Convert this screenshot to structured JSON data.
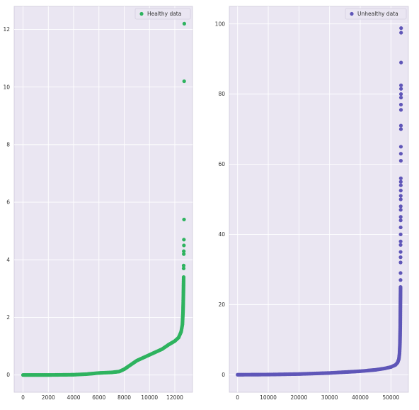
{
  "chart_data": [
    {
      "type": "scatter",
      "title": "",
      "xlabel": "",
      "ylabel": "",
      "legend": {
        "label": "Healthy data",
        "placement": "top-right"
      },
      "color": "#2eb35f",
      "grid": true,
      "xlim": [
        -700,
        13400
      ],
      "ylim": [
        -0.6,
        12.8
      ],
      "xticks": [
        0,
        2000,
        4000,
        6000,
        8000,
        10000,
        12000
      ],
      "yticks": [
        0,
        2,
        4,
        6,
        8,
        10,
        12
      ],
      "curve": [
        [
          0,
          0
        ],
        [
          2000,
          0
        ],
        [
          4000,
          0.01
        ],
        [
          5000,
          0.03
        ],
        [
          6000,
          0.07
        ],
        [
          7000,
          0.09
        ],
        [
          7600,
          0.12
        ],
        [
          8000,
          0.2
        ],
        [
          8500,
          0.35
        ],
        [
          9000,
          0.5
        ],
        [
          9500,
          0.6
        ],
        [
          10000,
          0.7
        ],
        [
          10500,
          0.8
        ],
        [
          11000,
          0.9
        ],
        [
          11500,
          1.05
        ],
        [
          12000,
          1.18
        ],
        [
          12300,
          1.3
        ],
        [
          12500,
          1.5
        ],
        [
          12600,
          1.75
        ],
        [
          12650,
          2.2
        ],
        [
          12680,
          2.8
        ],
        [
          12700,
          3.4
        ]
      ],
      "outliers": [
        [
          12700,
          3.7
        ],
        [
          12700,
          3.8
        ],
        [
          12710,
          4.2
        ],
        [
          12710,
          4.3
        ],
        [
          12720,
          4.5
        ],
        [
          12720,
          4.7
        ],
        [
          12730,
          5.4
        ],
        [
          12740,
          10.2
        ],
        [
          12750,
          12.2
        ]
      ]
    },
    {
      "type": "scatter",
      "title": "",
      "xlabel": "",
      "ylabel": "",
      "legend": {
        "label": "Unhealthy data",
        "placement": "top-right"
      },
      "color": "#5f56b8",
      "grid": true,
      "xlim": [
        -2700,
        55700
      ],
      "ylim": [
        -5,
        105
      ],
      "xticks": [
        0,
        10000,
        20000,
        30000,
        40000,
        50000
      ],
      "yticks": [
        0,
        20,
        40,
        60,
        80,
        100
      ],
      "curve": [
        [
          0,
          0
        ],
        [
          10000,
          0.05
        ],
        [
          20000,
          0.2
        ],
        [
          30000,
          0.5
        ],
        [
          40000,
          1.0
        ],
        [
          45000,
          1.4
        ],
        [
          48000,
          1.8
        ],
        [
          50000,
          2.2
        ],
        [
          51500,
          2.8
        ],
        [
          52200,
          3.5
        ],
        [
          52600,
          4.5
        ],
        [
          52800,
          6
        ],
        [
          52950,
          9
        ],
        [
          53050,
          14
        ],
        [
          53100,
          20
        ],
        [
          53150,
          25
        ]
      ],
      "outliers": [
        [
          53150,
          27
        ],
        [
          53150,
          29
        ],
        [
          53160,
          32
        ],
        [
          53160,
          33.5
        ],
        [
          53170,
          35
        ],
        [
          53170,
          37
        ],
        [
          53180,
          38
        ],
        [
          53180,
          40
        ],
        [
          53190,
          42
        ],
        [
          53190,
          44
        ],
        [
          53200,
          45
        ],
        [
          53200,
          47
        ],
        [
          53210,
          48
        ],
        [
          53210,
          50
        ],
        [
          53220,
          51
        ],
        [
          53220,
          52.5
        ],
        [
          53230,
          54
        ],
        [
          53230,
          55
        ],
        [
          53240,
          56
        ],
        [
          53250,
          61
        ],
        [
          53250,
          63
        ],
        [
          53260,
          65
        ],
        [
          53270,
          70
        ],
        [
          53270,
          71
        ],
        [
          53280,
          75.5
        ],
        [
          53280,
          77
        ],
        [
          53290,
          79
        ],
        [
          53290,
          80
        ],
        [
          53300,
          81.5
        ],
        [
          53300,
          82.5
        ],
        [
          53310,
          89
        ],
        [
          53320,
          97.5
        ],
        [
          53330,
          98.8
        ]
      ]
    }
  ]
}
